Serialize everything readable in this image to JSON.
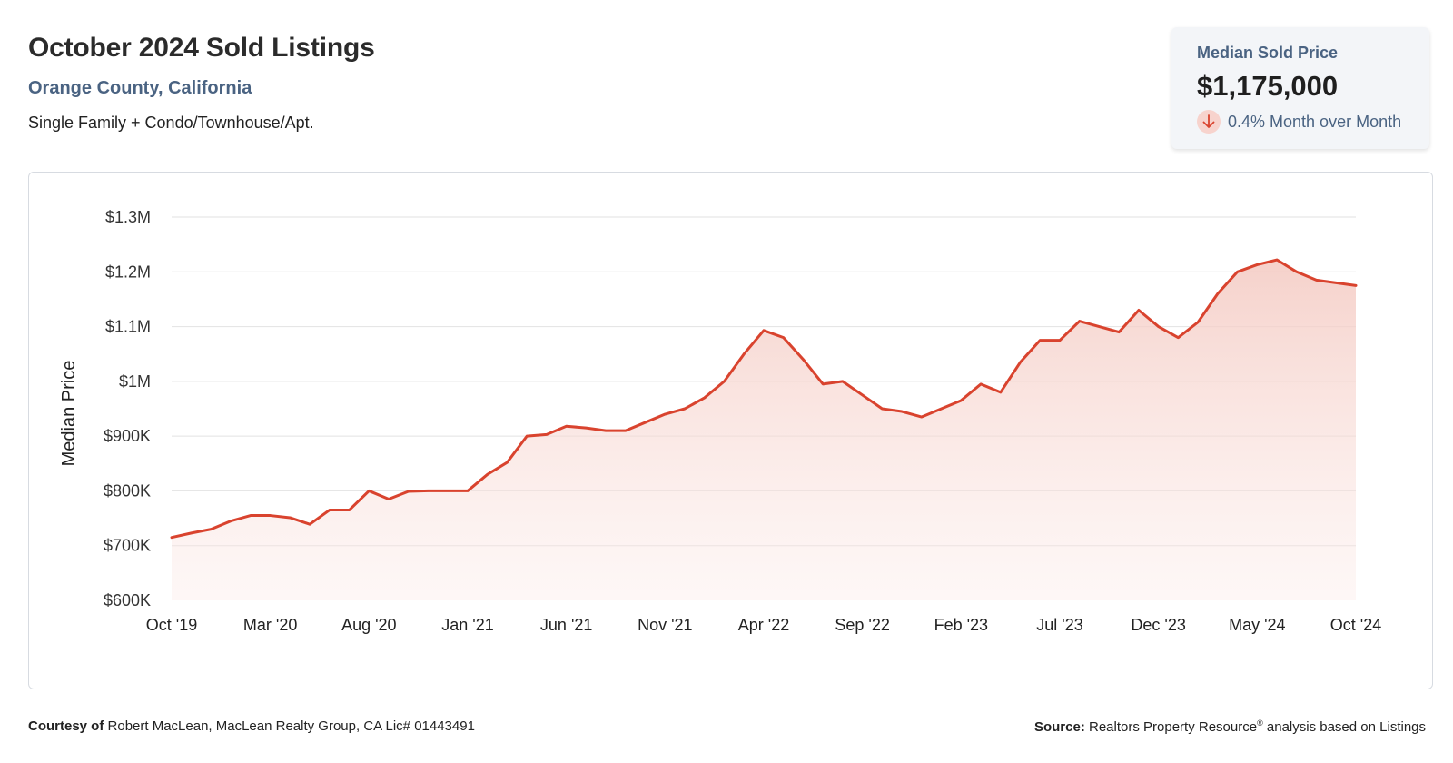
{
  "header": {
    "title": "October 2024 Sold Listings",
    "location": "Orange County, California",
    "property_types": "Single Family + Condo/Townhouse/Apt."
  },
  "kpi": {
    "label": "Median Sold Price",
    "value": "$1,175,000",
    "change": "0.4% Month over Month",
    "direction": "down",
    "icon": "arrow-down-icon"
  },
  "colors": {
    "line": "#d9432e",
    "fill": "#f6d3cc",
    "grid": "#e2e2e2",
    "accent_text": "#4a6382"
  },
  "chart_data": {
    "type": "area",
    "title": "",
    "xlabel": "",
    "ylabel": "Median Price",
    "ylim": [
      600000,
      1300000
    ],
    "y_ticks": [
      {
        "value": 600000,
        "label": "$600K"
      },
      {
        "value": 700000,
        "label": "$700K"
      },
      {
        "value": 800000,
        "label": "$800K"
      },
      {
        "value": 900000,
        "label": "$900K"
      },
      {
        "value": 1000000,
        "label": "$1M"
      },
      {
        "value": 1100000,
        "label": "$1.1M"
      },
      {
        "value": 1200000,
        "label": "$1.2M"
      },
      {
        "value": 1300000,
        "label": "$1.3M"
      }
    ],
    "x_tick_labels": [
      "Oct '19",
      "Mar '20",
      "Aug '20",
      "Jan '21",
      "Jun '21",
      "Nov '21",
      "Apr '22",
      "Sep '22",
      "Feb '23",
      "Jul '23",
      "Dec '23",
      "May '24",
      "Oct '24"
    ],
    "x_tick_every": 5,
    "grid": true,
    "legend": "none",
    "series": [
      {
        "values": [
          715000,
          723000,
          730000,
          745000,
          755000,
          755000,
          751000,
          739000,
          765000,
          765000,
          800000,
          785000,
          799000,
          800000,
          800000,
          800000,
          830000,
          852000,
          900000,
          903000,
          918000,
          915000,
          910000,
          910000,
          925000,
          940000,
          950000,
          970000,
          1000000,
          1050000,
          1093000,
          1080000,
          1040000,
          995000,
          1000000,
          975000,
          950000,
          945000,
          935000,
          950000,
          965000,
          995000,
          980000,
          1035000,
          1075000,
          1075000,
          1110000,
          1100000,
          1090000,
          1130000,
          1100000,
          1080000,
          1108000,
          1160000,
          1200000,
          1213000,
          1222000,
          1200000,
          1185000,
          1180000,
          1175000
        ]
      }
    ]
  },
  "footer": {
    "courtesy_label": "Courtesy of",
    "courtesy_text": "Robert MacLean, MacLean Realty Group, CA Lic# 01443491",
    "source_label": "Source:",
    "source_text": "Realtors Property Resource",
    "source_reg": "®",
    "source_suffix": "analysis based on Listings"
  }
}
